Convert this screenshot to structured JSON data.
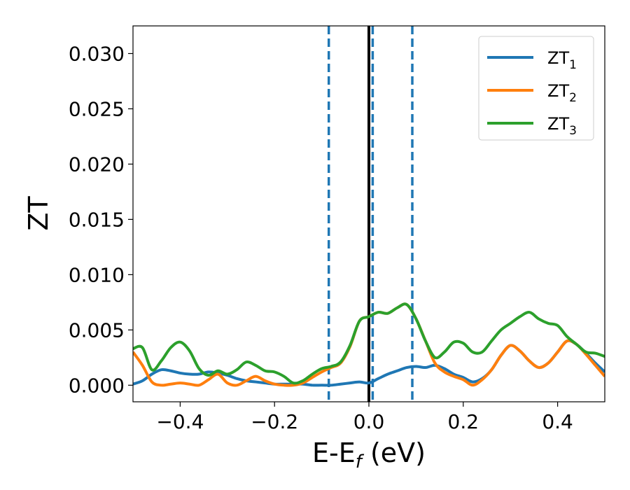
{
  "chart_data": {
    "type": "line",
    "xlabel": "E-E",
    "xlabel_sub": "f",
    "xlabel_unit": " (eV)",
    "ylabel": "ZT",
    "xlim": [
      -0.5,
      0.5
    ],
    "ylim": [
      -0.0015,
      0.0325
    ],
    "x_ticks": [
      -0.4,
      -0.2,
      0.0,
      0.2,
      0.4
    ],
    "x_tick_labels": [
      "−0.4",
      "−0.2",
      "0.0",
      "0.2",
      "0.4"
    ],
    "y_ticks": [
      0.0,
      0.005,
      0.01,
      0.015,
      0.02,
      0.025,
      0.03
    ],
    "y_tick_labels": [
      "0.000",
      "0.005",
      "0.010",
      "0.015",
      "0.020",
      "0.025",
      "0.030"
    ],
    "grid": false,
    "legend_position": "top-right",
    "reference_lines": [
      {
        "x": 0.0,
        "style": "solid",
        "color": "#000000"
      },
      {
        "x": -0.085,
        "style": "dashed",
        "color": "#1f77b4"
      },
      {
        "x": 0.008,
        "style": "dashed",
        "color": "#1f77b4"
      },
      {
        "x": 0.092,
        "style": "dashed",
        "color": "#1f77b4"
      }
    ],
    "series": [
      {
        "name": "ZT",
        "subscript": "1",
        "color": "#1f77b4",
        "x": [
          -0.5,
          -0.48,
          -0.46,
          -0.44,
          -0.42,
          -0.4,
          -0.38,
          -0.36,
          -0.34,
          -0.32,
          -0.3,
          -0.28,
          -0.26,
          -0.24,
          -0.22,
          -0.2,
          -0.18,
          -0.16,
          -0.14,
          -0.12,
          -0.1,
          -0.08,
          -0.06,
          -0.04,
          -0.02,
          0.0,
          0.02,
          0.04,
          0.06,
          0.08,
          0.1,
          0.12,
          0.14,
          0.16,
          0.18,
          0.2,
          0.22,
          0.24,
          0.26,
          0.28,
          0.3,
          0.32,
          0.34,
          0.36,
          0.38,
          0.4,
          0.42,
          0.44,
          0.46,
          0.48,
          0.5
        ],
        "y": [
          0.0001,
          0.0004,
          0.001,
          0.0014,
          0.0013,
          0.0011,
          0.001,
          0.001,
          0.0012,
          0.0011,
          0.0009,
          0.0006,
          0.0004,
          0.0003,
          0.0002,
          0.0001,
          0.0001,
          0.0001,
          0.0001,
          0.0,
          0.0,
          0.0,
          0.0001,
          0.0002,
          0.0003,
          0.0002,
          0.0006,
          0.001,
          0.0013,
          0.0016,
          0.0017,
          0.0016,
          0.0018,
          0.0015,
          0.001,
          0.0007,
          0.0003,
          0.0006,
          0.0014,
          0.0027,
          0.0036,
          0.0031,
          0.0022,
          0.0016,
          0.002,
          0.003,
          0.004,
          0.0037,
          0.0029,
          0.002,
          0.0012
        ]
      },
      {
        "name": "ZT",
        "subscript": "2",
        "color": "#ff7f0e",
        "x": [
          -0.5,
          -0.48,
          -0.46,
          -0.44,
          -0.42,
          -0.4,
          -0.38,
          -0.36,
          -0.34,
          -0.32,
          -0.3,
          -0.28,
          -0.26,
          -0.24,
          -0.22,
          -0.2,
          -0.18,
          -0.16,
          -0.14,
          -0.12,
          -0.1,
          -0.08,
          -0.06,
          -0.04,
          -0.02,
          0.0,
          0.02,
          0.04,
          0.06,
          0.08,
          0.1,
          0.12,
          0.14,
          0.16,
          0.18,
          0.2,
          0.22,
          0.24,
          0.26,
          0.28,
          0.3,
          0.32,
          0.34,
          0.36,
          0.38,
          0.4,
          0.42,
          0.44,
          0.46,
          0.48,
          0.5
        ],
        "y": [
          0.003,
          0.0018,
          0.0003,
          0.0,
          0.0001,
          0.0002,
          0.0001,
          0.0,
          0.0005,
          0.001,
          0.0002,
          0.0,
          0.0004,
          0.0008,
          0.0004,
          0.0001,
          0.0,
          0.0,
          0.0002,
          0.0007,
          0.0012,
          0.0016,
          0.002,
          0.0035,
          0.0058,
          0.0062,
          0.0066,
          0.0065,
          0.007,
          0.0073,
          0.006,
          0.004,
          0.002,
          0.0012,
          0.0008,
          0.0005,
          0.0,
          0.0005,
          0.0014,
          0.0027,
          0.0036,
          0.0031,
          0.0022,
          0.0016,
          0.002,
          0.003,
          0.004,
          0.0037,
          0.0028,
          0.0018,
          0.0008
        ]
      },
      {
        "name": "ZT",
        "subscript": "3",
        "color": "#2ca02c",
        "x": [
          -0.5,
          -0.48,
          -0.46,
          -0.44,
          -0.42,
          -0.4,
          -0.38,
          -0.36,
          -0.34,
          -0.32,
          -0.3,
          -0.28,
          -0.26,
          -0.24,
          -0.22,
          -0.2,
          -0.18,
          -0.16,
          -0.14,
          -0.12,
          -0.1,
          -0.08,
          -0.06,
          -0.04,
          -0.02,
          0.0,
          0.02,
          0.04,
          0.06,
          0.08,
          0.1,
          0.12,
          0.14,
          0.16,
          0.18,
          0.2,
          0.22,
          0.24,
          0.26,
          0.28,
          0.3,
          0.32,
          0.34,
          0.36,
          0.38,
          0.4,
          0.42,
          0.44,
          0.46,
          0.48,
          0.5
        ],
        "y": [
          0.0033,
          0.0034,
          0.0014,
          0.0022,
          0.0034,
          0.0039,
          0.0031,
          0.0015,
          0.0009,
          0.0013,
          0.001,
          0.0014,
          0.0021,
          0.0018,
          0.0013,
          0.0012,
          0.0008,
          0.0002,
          0.0004,
          0.001,
          0.0015,
          0.0017,
          0.0021,
          0.0036,
          0.0058,
          0.0062,
          0.0066,
          0.0065,
          0.007,
          0.0073,
          0.006,
          0.004,
          0.0025,
          0.003,
          0.0039,
          0.0038,
          0.003,
          0.003,
          0.004,
          0.005,
          0.0056,
          0.0062,
          0.0066,
          0.006,
          0.0056,
          0.0054,
          0.0044,
          0.0037,
          0.003,
          0.0029,
          0.0026
        ]
      }
    ]
  }
}
